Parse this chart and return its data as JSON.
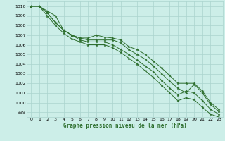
{
  "title": "Graphe pression niveau de la mer (hPa)",
  "background_color": "#cceee8",
  "grid_color": "#aad4ce",
  "line_color": "#2d6e2d",
  "xlim": [
    -0.5,
    23.5
  ],
  "ylim": [
    998.5,
    1010.5
  ],
  "yticks": [
    999,
    1000,
    1001,
    1002,
    1003,
    1004,
    1005,
    1006,
    1007,
    1008,
    1009,
    1010
  ],
  "xticks": [
    0,
    1,
    2,
    3,
    4,
    5,
    6,
    7,
    8,
    9,
    10,
    11,
    12,
    13,
    14,
    15,
    16,
    17,
    18,
    19,
    20,
    21,
    22,
    23
  ],
  "series": [
    [
      1010.0,
      1010.0,
      1009.5,
      1009.0,
      1007.5,
      1007.0,
      1006.7,
      1006.7,
      1007.0,
      1006.8,
      1006.7,
      1006.5,
      1005.8,
      1005.5,
      1005.0,
      1004.3,
      1003.6,
      1002.8,
      1002.0,
      1002.0,
      1002.0,
      1001.2,
      1000.0,
      999.3
    ],
    [
      1010.0,
      1010.0,
      1009.3,
      1008.3,
      1007.5,
      1007.0,
      1006.7,
      1006.5,
      1006.5,
      1006.5,
      1006.5,
      1006.2,
      1005.5,
      1005.0,
      1004.5,
      1003.8,
      1003.0,
      1002.2,
      1001.5,
      1001.0,
      1001.9,
      1001.0,
      999.8,
      999.1
    ],
    [
      1010.0,
      1010.0,
      1009.3,
      1008.3,
      1007.5,
      1007.0,
      1006.5,
      1006.3,
      1006.3,
      1006.3,
      1006.0,
      1005.5,
      1005.0,
      1004.4,
      1003.8,
      1003.2,
      1002.3,
      1001.5,
      1000.8,
      1001.2,
      1001.0,
      1000.2,
      999.3,
      998.8
    ],
    [
      1010.0,
      1010.0,
      1009.0,
      1008.0,
      1007.2,
      1006.6,
      1006.3,
      1006.0,
      1006.0,
      1006.0,
      1005.7,
      1005.2,
      1004.6,
      1004.0,
      1003.3,
      1002.6,
      1001.8,
      1001.0,
      1000.2,
      1000.5,
      1000.3,
      999.5,
      998.8,
      998.5
    ]
  ]
}
